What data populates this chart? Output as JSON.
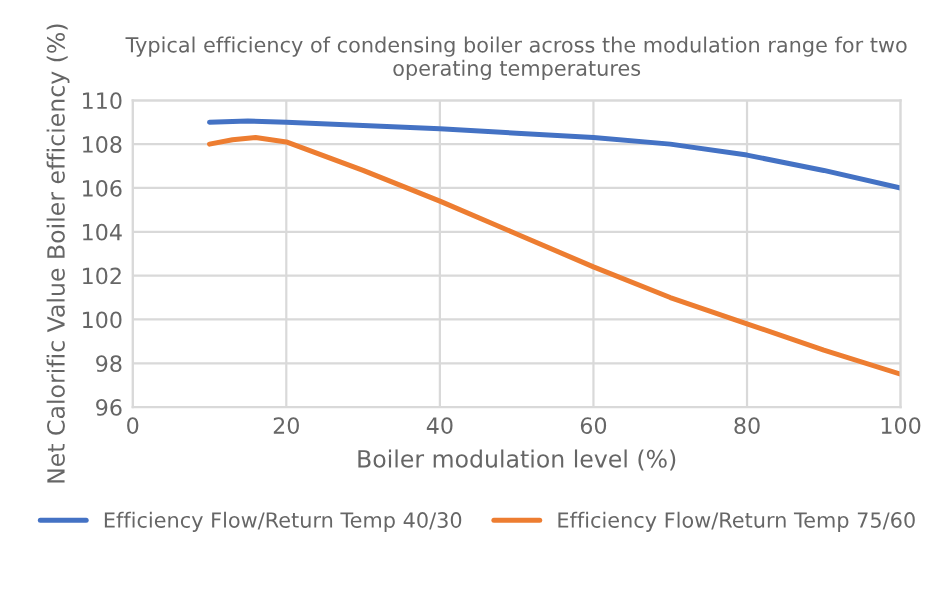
{
  "chart_data": {
    "type": "line",
    "title": "Typical efficiency of condensing boiler across the modulation range for two operating temperatures",
    "xlabel": "Boiler modulation level (%)",
    "ylabel": "Net Calorific Value Boiler efficiency (%)",
    "series": [
      {
        "name": "Efficiency Flow/Return Temp 40/30",
        "color": "#4472c4",
        "x": [
          10,
          15,
          20,
          30,
          40,
          50,
          60,
          70,
          80,
          90,
          100
        ],
        "values": [
          109,
          109.05,
          109,
          108.85,
          108.7,
          108.5,
          108.3,
          108,
          107.5,
          106.8,
          106
        ]
      },
      {
        "name": "Efficiency Flow/Return Temp 75/60",
        "color": "#ed7d31",
        "x": [
          10,
          13,
          16,
          20,
          30,
          40,
          50,
          60,
          70,
          80,
          90,
          100
        ],
        "values": [
          108,
          108.2,
          108.3,
          108.1,
          106.8,
          105.4,
          103.9,
          102.4,
          101,
          99.8,
          98.6,
          97.5
        ]
      }
    ],
    "xlim": [
      0,
      100
    ],
    "xticks": [
      0,
      20,
      40,
      60,
      80,
      100
    ],
    "ylim": [
      96,
      110
    ],
    "yticks": [
      96,
      98,
      100,
      102,
      104,
      106,
      108,
      110
    ],
    "grid": true,
    "legend": "bottom",
    "marker": "none",
    "line_style": "solid"
  }
}
